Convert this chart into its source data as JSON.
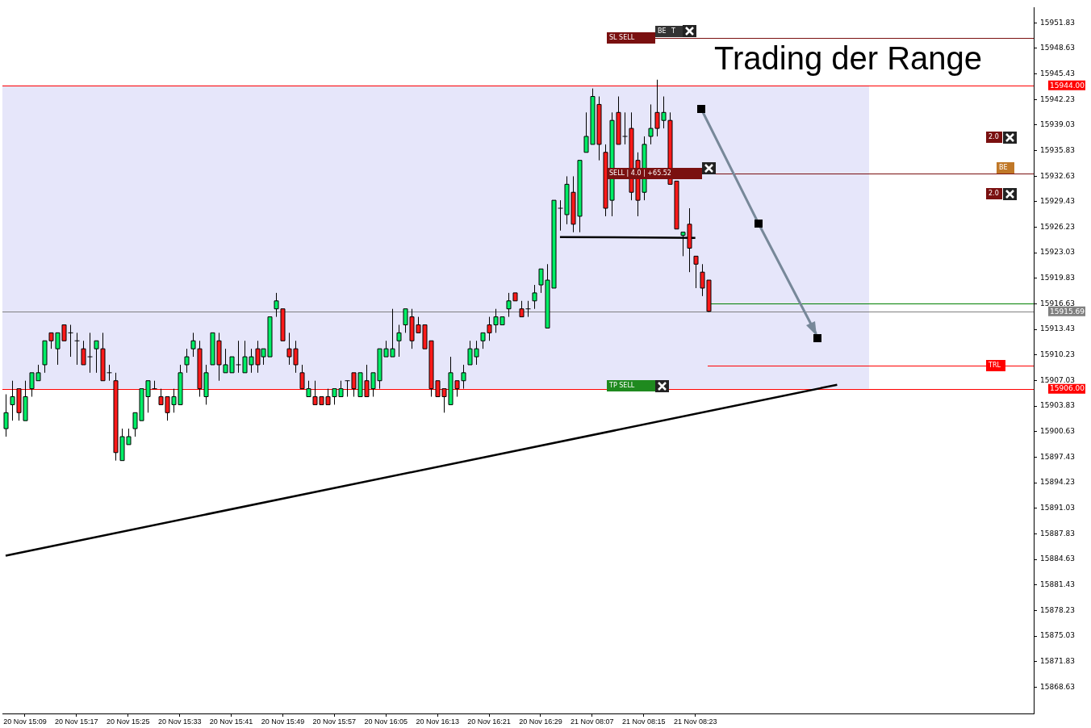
{
  "chart_data": {
    "type": "candlestick",
    "title": "Trading der Range",
    "categories": [
      null,
      null,
      null,
      "20 Nov 15:09",
      null,
      null,
      null,
      null,
      null,
      null,
      null,
      "20 Nov 15:17",
      null,
      null,
      null,
      null,
      null,
      null,
      null,
      "20 Nov 15:25",
      null,
      null,
      null,
      null,
      null,
      null,
      null,
      "20 Nov 15:33",
      null,
      null,
      null,
      null,
      null,
      null,
      null,
      "20 Nov 15:41",
      null,
      null,
      null,
      null,
      null,
      null,
      null,
      "20 Nov 15:49",
      null,
      null,
      null,
      null,
      null,
      null,
      null,
      "20 Nov 15:57",
      null,
      null,
      null,
      null,
      null,
      null,
      null,
      "20 Nov 16:05",
      null,
      null,
      null,
      null,
      null,
      null,
      null,
      "20 Nov 16:13",
      null,
      null,
      null,
      null,
      null,
      null,
      null,
      "20 Nov 16:21",
      null,
      null,
      null,
      null,
      null,
      null,
      null,
      "20 Nov 16:29",
      null,
      null,
      null,
      null,
      null,
      null,
      null,
      "21 Nov 08:07",
      null,
      null,
      null,
      null,
      null,
      null,
      null,
      "21 Nov 08:15",
      null,
      null,
      null,
      null,
      null,
      null,
      null,
      "21 Nov 08:23",
      null,
      null,
      null,
      null,
      null,
      null,
      null,
      null,
      null,
      null,
      null,
      null,
      null,
      null,
      null,
      null,
      null,
      null,
      null,
      null,
      null,
      null,
      null,
      null,
      null,
      null,
      null,
      null,
      null,
      null,
      null,
      null,
      null,
      null,
      null,
      null,
      null,
      null,
      null,
      null,
      null,
      null,
      null,
      null,
      null,
      null,
      null,
      null,
      null,
      null,
      null,
      null
    ],
    "ohlc": [
      [
        15901,
        15905.3,
        15900,
        15903
      ],
      [
        15904,
        15907,
        15902,
        15905
      ],
      [
        15906,
        15906,
        15902,
        15903
      ],
      [
        15902,
        15907,
        15902,
        15905
      ],
      [
        15906,
        15908,
        15905,
        15908
      ],
      [
        15907,
        15909,
        15907,
        15908
      ],
      [
        15909,
        15912,
        15908,
        15912
      ],
      [
        15913,
        15913,
        15911,
        15912
      ],
      [
        15911,
        15913,
        15909,
        15913
      ],
      [
        15914,
        15914,
        15912,
        15912
      ],
      [
        15913,
        15914,
        15910,
        15913
      ],
      [
        15912,
        15913,
        15909,
        15912
      ],
      [
        15911,
        15912,
        15909,
        15909
      ],
      [
        15910,
        15913,
        15908,
        15910
      ],
      [
        15911,
        15912,
        15908,
        15912
      ],
      [
        15911,
        15913,
        15907,
        15907
      ],
      [
        15908,
        15909,
        15907,
        15908
      ],
      [
        15907,
        15908,
        15897,
        15898
      ],
      [
        15897,
        15901,
        15897,
        15900
      ],
      [
        15899,
        15901,
        15899,
        15900
      ],
      [
        15901,
        15903,
        15900,
        15903
      ],
      [
        15902,
        15906,
        15902,
        15906
      ],
      [
        15905,
        15907,
        15903,
        15907
      ],
      [
        15906,
        15907,
        15906,
        15906
      ],
      [
        15905,
        15906,
        15904,
        15904
      ],
      [
        15905,
        15905,
        15902,
        15903
      ],
      [
        15904,
        15906,
        15903,
        15905
      ],
      [
        15904,
        15909,
        15904,
        15908
      ],
      [
        15909,
        15911,
        15908,
        15910
      ],
      [
        15911,
        15913,
        15910,
        15912
      ],
      [
        15911,
        15912,
        15905,
        15906
      ],
      [
        15905,
        15909,
        15904,
        15908
      ],
      [
        15909,
        15913,
        15909,
        15913
      ],
      [
        15912,
        15913,
        15907,
        15909
      ],
      [
        15908,
        15911,
        15908,
        15909
      ],
      [
        15908,
        15910,
        15908,
        15910
      ],
      [
        15909,
        15912,
        15908,
        15909
      ],
      [
        15908,
        15912,
        15908,
        15910
      ],
      [
        15909,
        15911,
        15908,
        15910
      ],
      [
        15911,
        15912,
        15908,
        15909
      ],
      [
        15910,
        15911,
        15909,
        15911
      ],
      [
        15910,
        15915,
        15910,
        15915
      ],
      [
        15916,
        15918,
        15915,
        15917
      ],
      [
        15916,
        15916,
        15912,
        15912
      ],
      [
        15911,
        15913,
        15909,
        15910
      ],
      [
        15911,
        15912,
        15908,
        15909
      ],
      [
        15908,
        15909,
        15906,
        15906
      ],
      [
        15905,
        15907,
        15905,
        15906
      ],
      [
        15905,
        15907,
        15904,
        15904
      ],
      [
        15905,
        15905,
        15904,
        15904
      ],
      [
        15905,
        15906,
        15904,
        15904
      ],
      [
        15905,
        15906,
        15904,
        15906
      ],
      [
        15905,
        15907,
        15905,
        15906
      ],
      [
        15907,
        15907,
        15905,
        15907
      ],
      [
        15908,
        15908,
        15905,
        15906
      ],
      [
        15905,
        15908,
        15905,
        15908
      ],
      [
        15907,
        15909,
        15905,
        15905
      ],
      [
        15906,
        15908,
        15905,
        15908
      ],
      [
        15907,
        15911,
        15906,
        15911
      ],
      [
        15910,
        15912,
        15910,
        15911
      ],
      [
        15910,
        15916,
        15910,
        15911
      ],
      [
        15912,
        15914,
        15910,
        15913
      ],
      [
        15914,
        15916,
        15913,
        15916
      ],
      [
        15915,
        15916,
        15911,
        15912
      ],
      [
        15914,
        15915,
        15913,
        15913
      ],
      [
        15914,
        15914,
        15911,
        15911
      ],
      [
        15912,
        15912,
        15905,
        15906
      ],
      [
        15907,
        15907,
        15905,
        15905
      ],
      [
        15906,
        15906,
        15903,
        15905
      ],
      [
        15904,
        15910,
        15904,
        15908
      ],
      [
        15907,
        15907,
        15905,
        15906
      ],
      [
        15907,
        15909,
        15906,
        15908
      ],
      [
        15909,
        15912,
        15909,
        15911
      ],
      [
        15910,
        15912,
        15909,
        15911
      ],
      [
        15912,
        15913,
        15911,
        15913
      ],
      [
        15914,
        15915,
        15912,
        15913
      ],
      [
        15914,
        15916,
        15913,
        15915
      ],
      [
        15914,
        15915,
        15914,
        15915
      ],
      [
        15916,
        15918,
        15915,
        15917
      ],
      [
        15918,
        15918,
        15917,
        15917
      ],
      [
        15916,
        15917,
        15915,
        15915
      ],
      [
        15916,
        15917,
        15915,
        15916
      ],
      [
        15917,
        15919,
        15916,
        15918
      ],
      [
        15919,
        15921,
        15918,
        15921
      ],
      [
        15913.6,
        15921.6,
        15913.6,
        15919.6
      ],
      [
        15918.6,
        15929.6,
        15918.6,
        15929.6
      ],
      [
        15928.6,
        15929.6,
        15925.8,
        15928.6
      ],
      [
        15927.8,
        15932.6,
        15926.6,
        15931.6
      ],
      [
        15930.6,
        15932.6,
        15925.6,
        15926.6
      ],
      [
        15927.6,
        15934.6,
        15925.6,
        15934.6
      ],
      [
        15935.6,
        15940.6,
        15935.6,
        15937.6
      ],
      [
        15936.6,
        15943.6,
        15936.6,
        15942.6
      ],
      [
        15941.6,
        15942.6,
        15934.6,
        15936.6
      ],
      [
        15935.6,
        15936.6,
        15927.6,
        15928.6
      ],
      [
        15929.6,
        15940.6,
        15927.6,
        15939.6
      ],
      [
        15940.6,
        15942.6,
        15936.6,
        15936.6
      ],
      [
        15937.6,
        15940.6,
        15936.6,
        15937.6
      ],
      [
        15938.6,
        15940.6,
        15929.6,
        15930.6
      ],
      [
        15934.6,
        15935.6,
        15927.6,
        15929.6
      ],
      [
        15930.6,
        15937.6,
        15929.6,
        15936.6
      ],
      [
        15937.6,
        15941.6,
        15936.6,
        15938.6
      ],
      [
        15940.6,
        15944.7,
        15937.6,
        15938.6
      ],
      [
        15939.6,
        15942.6,
        15938.6,
        15940.6
      ],
      [
        15939.6,
        15940.6,
        15931.6,
        15931.6
      ],
      [
        15932,
        15932,
        15926,
        15926
      ],
      [
        15925.2,
        15925.6,
        15922.6,
        15925.6
      ],
      [
        15926.6,
        15928.6,
        15920.6,
        15923.6
      ],
      [
        15922.6,
        15922.6,
        15918.6,
        15921.6
      ],
      [
        15920.6,
        15921.6,
        15917.6,
        15918.6
      ],
      [
        15919.6,
        15919.6,
        15915.6,
        15915.69
      ],
      null,
      null,
      null,
      null,
      null,
      null,
      null,
      null,
      null,
      null,
      null,
      null,
      null,
      null,
      null,
      null,
      null,
      null,
      null,
      null,
      null,
      null,
      null,
      null,
      null,
      null,
      null,
      null,
      null,
      null,
      null,
      null,
      null,
      null,
      null,
      null,
      null,
      null,
      null,
      null,
      null,
      null,
      null,
      null,
      null,
      null,
      null,
      null,
      null,
      null
    ],
    "colors": [
      "#00ee66",
      "#00ee66",
      "#ff1a1a",
      "#00ee66",
      "#00ee66",
      "#00ee66",
      "#00ee66",
      "#ff1a1a",
      "#00ee66",
      "#ff1a1a",
      "#000000",
      "#000000",
      "#ff1a1a",
      "#000000",
      "#00ee66",
      "#ff1a1a",
      "#000000",
      "#ff1a1a",
      "#00ee66",
      "#00ee66",
      "#00ee66",
      "#00ee66",
      "#00ee66",
      "#000000",
      "#ff1a1a",
      "#ff1a1a",
      "#00ee66",
      "#00ee66",
      "#00ee66",
      "#00ee66",
      "#ff1a1a",
      "#00ee66",
      "#00ee66",
      "#ff1a1a",
      "#00ee66",
      "#00ee66",
      "#000000",
      "#00ee66",
      "#00ee66",
      "#ff1a1a",
      "#00ee66",
      "#00ee66",
      "#00ee66",
      "#ff1a1a",
      "#ff1a1a",
      "#ff1a1a",
      "#ff1a1a",
      "#00ee66",
      "#ff1a1a",
      "#ff1a1a",
      "#ff1a1a",
      "#00ee66",
      "#00ee66",
      "#000000",
      "#ff1a1a",
      "#00ee66",
      "#ff1a1a",
      "#00ee66",
      "#00ee66",
      "#00ee66",
      "#00ee66",
      "#00ee66",
      "#00ee66",
      "#ff1a1a",
      "#ff1a1a",
      "#ff1a1a",
      "#ff1a1a",
      "#ff1a1a",
      "#ff1a1a",
      "#00ee66",
      "#ff1a1a",
      "#00ee66",
      "#00ee66",
      "#00ee66",
      "#00ee66",
      "#ff1a1a",
      "#00ee66",
      "#00ee66",
      "#00ee66",
      "#ff1a1a",
      "#ff1a1a",
      "#000000",
      "#00ee66",
      "#00ee66",
      "#00ee66",
      "#00ee66",
      "#000000",
      "#00ee66",
      "#ff1a1a",
      "#00ee66",
      "#00ee66",
      "#00ee66",
      "#ff1a1a",
      "#ff1a1a",
      "#00ee66",
      "#ff1a1a",
      "#000000",
      "#ff1a1a",
      "#ff1a1a",
      "#00ee66",
      "#00ee66",
      "#ff1a1a",
      "#00ee66",
      "#ff1a1a",
      "#ff1a1a",
      "#00ee66",
      "#ff1a1a",
      "#ff1a1a",
      "#ff1a1a",
      "#ff1a1a",
      null,
      null,
      null,
      null,
      null,
      null,
      null,
      null,
      null,
      null,
      null,
      null,
      null,
      null,
      null,
      null,
      null,
      null,
      null,
      null,
      null,
      null,
      null,
      null,
      null,
      null,
      null,
      null,
      null,
      null,
      null,
      null,
      null,
      null,
      null,
      null,
      null,
      null,
      null,
      null,
      null,
      null,
      null,
      null,
      null,
      null,
      null,
      null,
      null,
      null
    ],
    "series": [
      {
        "type": "line",
        "color": "#000000",
        "values": [
          15885.1,
          null,
          null,
          null,
          null,
          null,
          null,
          null,
          null,
          null,
          null,
          null,
          null,
          null,
          null,
          null,
          null,
          null,
          null,
          null,
          null,
          null,
          null,
          null,
          null,
          null,
          null,
          null,
          null,
          null,
          null,
          null,
          null,
          null,
          null,
          null,
          null,
          null,
          null,
          null,
          null,
          null,
          null,
          null,
          null,
          null,
          null,
          null,
          null,
          null,
          null,
          null,
          null,
          null,
          null,
          null,
          null,
          null,
          null,
          null,
          null,
          null,
          null,
          null,
          null,
          null,
          null,
          null,
          null,
          null,
          null,
          null,
          null,
          null,
          null,
          null,
          null,
          null,
          null,
          null,
          null,
          null,
          null,
          null,
          null,
          null,
          null,
          null,
          null,
          null,
          null,
          null,
          null,
          null,
          null,
          null,
          null,
          null,
          null,
          null,
          null,
          null,
          null,
          null,
          null,
          null,
          null,
          null,
          null,
          null,
          null,
          null,
          null,
          null,
          null,
          null,
          null,
          null,
          null,
          null,
          null,
          null,
          null,
          null,
          null,
          null,
          null,
          null,
          null,
          15906.5,
          null,
          null,
          null,
          null,
          null,
          null,
          null,
          null,
          null,
          null,
          null,
          null,
          null,
          null,
          null,
          null,
          null,
          null,
          null,
          null,
          null,
          null,
          null,
          null,
          null,
          null,
          null,
          null,
          null,
          null
        ]
      },
      {
        "type": "line",
        "color": "#000000",
        "values": [
          null,
          null,
          null,
          null,
          null,
          null,
          null,
          null,
          null,
          null,
          null,
          null,
          null,
          null,
          null,
          null,
          null,
          null,
          null,
          null,
          null,
          null,
          null,
          null,
          null,
          null,
          null,
          null,
          null,
          null,
          null,
          null,
          null,
          null,
          null,
          null,
          null,
          null,
          null,
          null,
          null,
          null,
          null,
          null,
          null,
          null,
          null,
          null,
          null,
          null,
          null,
          null,
          null,
          null,
          null,
          null,
          null,
          null,
          null,
          null,
          null,
          null,
          null,
          null,
          null,
          null,
          null,
          null,
          null,
          null,
          null,
          null,
          null,
          null,
          null,
          null,
          null,
          null,
          null,
          null,
          null,
          null,
          null,
          null,
          null,
          null,
          15925.0,
          null,
          null,
          null,
          null,
          null,
          null,
          null,
          null,
          null,
          null,
          null,
          null,
          null,
          null,
          null,
          null,
          null,
          null,
          null,
          null,
          15924.9,
          null,
          null,
          null,
          null,
          null,
          null,
          null,
          null,
          null,
          null,
          null,
          null,
          null,
          null,
          null,
          null,
          null,
          null,
          null,
          null,
          null,
          null,
          null,
          null,
          null,
          null,
          null,
          null,
          null,
          null,
          null,
          null,
          null,
          null,
          null,
          null,
          null,
          null,
          null,
          null,
          null,
          null,
          null,
          null,
          null,
          null,
          null,
          null,
          null,
          null,
          null,
          null
        ]
      }
    ],
    "ylim": [
      15865.33,
      15953.73
    ],
    "yticks": [
      15951.83,
      15948.63,
      15945.43,
      15942.23,
      15939.03,
      15935.83,
      15932.63,
      15929.43,
      15926.23,
      15923.03,
      15919.83,
      15916.63,
      15913.43,
      15910.23,
      15907.03,
      15903.83,
      15900.63,
      15897.43,
      15894.23,
      15891.03,
      15887.83,
      15884.63,
      15881.43,
      15878.23,
      15875.03,
      15871.83,
      15868.63
    ],
    "bands": [
      {
        "axis": "y",
        "from": 15906,
        "to": 15944,
        "color": "#e6e6fa"
      }
    ],
    "ref_lines": [
      {
        "axis": "y",
        "value": 15944.0,
        "label": "15944.00",
        "color": "#ff0000"
      },
      {
        "axis": "y",
        "value": 15906.0,
        "label": "15906.00",
        "color": "#ff0000"
      },
      {
        "axis": "y",
        "value": 15915.69,
        "label": "15915.69",
        "color": "#808080"
      },
      {
        "axis": "y",
        "value": 15949.9,
        "label": "SL SELL",
        "color": "#7a1010"
      },
      {
        "axis": "y",
        "value": 15932.9,
        "label": "SELL | 4.0 | +65.52",
        "color": "#7a1010"
      },
      {
        "axis": "y",
        "value": 15916.7,
        "color": "#008000"
      },
      {
        "axis": "y",
        "value": 15908.9,
        "label": "TRL",
        "color": "#ff0000"
      }
    ],
    "annotations": [
      "BE",
      "T",
      "2.0",
      "BE",
      "2.0",
      "TP SELL"
    ]
  }
}
